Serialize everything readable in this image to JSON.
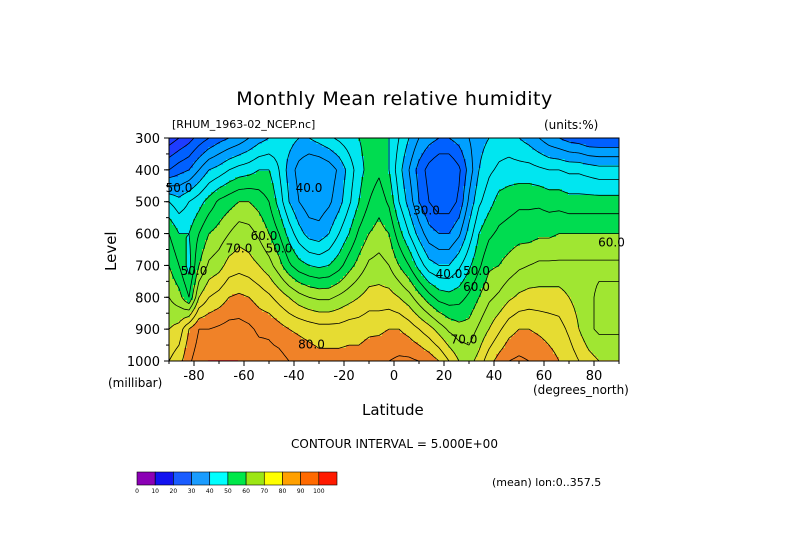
{
  "colors": {
    "c0_10": "#7f00bf",
    "c10_20": "#1e3cff",
    "c20_30": "#0060ff",
    "c30_40": "#00a0ff",
    "c40_50": "#00e6f0",
    "c50_60": "#00dc50",
    "c60_70": "#a0e632",
    "c70_80": "#e6dc32",
    "c80_90": "#f08228",
    "c90_100": "#fa3c3c"
  },
  "chart_data": {
    "type": "heatmap",
    "title": "Monthly Mean relative humidity",
    "file_label": "[RHUM_1963-02_NCEP.nc]",
    "units_label": "(units:%)",
    "ylabel": "Level",
    "yunits": "(millibar)",
    "xlabel": "Latitude",
    "xunits": "(degrees_north)",
    "contour_interval_text": "CONTOUR INTERVAL = 5.000E+00",
    "mean_text": "(mean) lon:0..357.5",
    "xlim": [
      -90,
      90
    ],
    "ylim": [
      1000,
      300
    ],
    "x_ticks": [
      -80,
      -60,
      -40,
      -20,
      0,
      20,
      40,
      60,
      80
    ],
    "y_ticks": [
      300,
      400,
      500,
      600,
      700,
      800,
      900,
      1000
    ],
    "colorbar_ticks": [
      0,
      10,
      20,
      30,
      40,
      50,
      60,
      70,
      80,
      90,
      100
    ],
    "colorbar_colors": [
      "#8b00b5",
      "#1212f0",
      "#1a5cff",
      "#1a9cff",
      "#00ffff",
      "#00e84a",
      "#9ce614",
      "#ffff00",
      "#ffa000",
      "#ff6a00",
      "#ff1a00"
    ],
    "contour_labels": [
      {
        "text": "40.0",
        "lat": -34,
        "level": 470
      },
      {
        "text": "30.0",
        "lat": 13,
        "level": 540
      },
      {
        "text": "40.0",
        "lat": 22,
        "level": 740
      },
      {
        "text": "50.0",
        "lat": -46,
        "level": 660
      },
      {
        "text": "50.0",
        "lat": 33,
        "level": 730
      },
      {
        "text": "60.0",
        "lat": -52,
        "level": 620
      },
      {
        "text": "60.0",
        "lat": 33,
        "level": 780
      },
      {
        "text": "70.0",
        "lat": -62,
        "level": 660
      },
      {
        "text": "70.0",
        "lat": 28,
        "level": 945
      },
      {
        "text": "80.0",
        "lat": -33,
        "level": 960
      },
      {
        "text": "50.0",
        "lat": -80,
        "level": 730
      },
      {
        "text": "50.0",
        "lat": -86,
        "level": 470
      },
      {
        "text": "60.0",
        "lat": 87,
        "level": 640
      }
    ],
    "rh_columns": {
      "lat": [
        -90,
        -86,
        -82,
        -78,
        -74,
        -70,
        -66,
        -62,
        -58,
        -54,
        -50,
        -46,
        -42,
        -38,
        -34,
        -30,
        -26,
        -22,
        -18,
        -14,
        -10,
        -6,
        -2,
        2,
        6,
        10,
        14,
        18,
        22,
        26,
        30,
        34,
        38,
        42,
        46,
        50,
        54,
        58,
        62,
        66,
        70,
        74,
        78,
        82,
        86,
        90
      ],
      "levels": [
        300,
        400,
        500,
        600,
        700,
        800,
        900,
        1000
      ],
      "values": [
        [
          12,
          25,
          45,
          55,
          60,
          65,
          70,
          75
        ],
        [
          15,
          28,
          42,
          50,
          55,
          62,
          72,
          78
        ],
        [
          18,
          30,
          45,
          50,
          48,
          55,
          80,
          84
        ],
        [
          22,
          35,
          48,
          55,
          60,
          70,
          85,
          88
        ],
        [
          25,
          40,
          52,
          60,
          66,
          75,
          85,
          90
        ],
        [
          28,
          42,
          56,
          62,
          68,
          77,
          86,
          90
        ],
        [
          30,
          45,
          58,
          65,
          72,
          80,
          87,
          90
        ],
        [
          32,
          47,
          60,
          68,
          73,
          81,
          87,
          90
        ],
        [
          35,
          48,
          60,
          67,
          72,
          80,
          86,
          89
        ],
        [
          38,
          50,
          58,
          64,
          70,
          78,
          84,
          88
        ],
        [
          40,
          50,
          55,
          60,
          67,
          76,
          84,
          87
        ],
        [
          42,
          45,
          48,
          55,
          62,
          73,
          82,
          87
        ],
        [
          42,
          38,
          40,
          48,
          56,
          70,
          80,
          85
        ],
        [
          40,
          33,
          35,
          42,
          52,
          67,
          79,
          84
        ],
        [
          40,
          30,
          32,
          38,
          50,
          65,
          78,
          83
        ],
        [
          42,
          30,
          32,
          37,
          49,
          64,
          77,
          82
        ],
        [
          44,
          32,
          34,
          40,
          50,
          64,
          77,
          82
        ],
        [
          46,
          36,
          38,
          45,
          53,
          66,
          77,
          82
        ],
        [
          48,
          42,
          44,
          50,
          58,
          68,
          78,
          82
        ],
        [
          50,
          48,
          50,
          56,
          62,
          70,
          78,
          82
        ],
        [
          52,
          52,
          55,
          60,
          66,
          72,
          79,
          83
        ],
        [
          52,
          54,
          58,
          62,
          67,
          72,
          79,
          84
        ],
        [
          50,
          50,
          54,
          60,
          65,
          72,
          80,
          85
        ],
        [
          45,
          42,
          45,
          52,
          60,
          70,
          80,
          86
        ],
        [
          40,
          35,
          38,
          45,
          55,
          67,
          78,
          86
        ],
        [
          35,
          28,
          30,
          38,
          48,
          62,
          75,
          85
        ],
        [
          32,
          23,
          25,
          32,
          42,
          57,
          72,
          83
        ],
        [
          30,
          20,
          22,
          30,
          40,
          53,
          68,
          80
        ],
        [
          30,
          20,
          22,
          30,
          40,
          52,
          64,
          75
        ],
        [
          32,
          24,
          26,
          34,
          44,
          53,
          62,
          70
        ],
        [
          35,
          32,
          36,
          42,
          49,
          56,
          62,
          68
        ],
        [
          38,
          40,
          44,
          50,
          54,
          60,
          66,
          72
        ],
        [
          40,
          44,
          48,
          54,
          59,
          64,
          70,
          78
        ],
        [
          42,
          46,
          52,
          56,
          60,
          66,
          74,
          82
        ],
        [
          42,
          47,
          53,
          57,
          62,
          69,
          78,
          85
        ],
        [
          40,
          47,
          54,
          58,
          64,
          71,
          80,
          86
        ],
        [
          38,
          47,
          54,
          58,
          65,
          72,
          80,
          85
        ],
        [
          35,
          46,
          54,
          59,
          66,
          72,
          79,
          84
        ],
        [
          32,
          45,
          53,
          59,
          66,
          72,
          78,
          82
        ],
        [
          30,
          45,
          53,
          60,
          66,
          72,
          77,
          80
        ],
        [
          28,
          44,
          52,
          60,
          66,
          70,
          74,
          78
        ],
        [
          27,
          44,
          52,
          60,
          66,
          68,
          70,
          75
        ],
        [
          25,
          43,
          52,
          60,
          66,
          66,
          66,
          72
        ],
        [
          25,
          42,
          52,
          60,
          66,
          64,
          64,
          70
        ],
        [
          25,
          42,
          52,
          60,
          66,
          64,
          64,
          70
        ],
        [
          25,
          42,
          52,
          60,
          66,
          64,
          64,
          70
        ]
      ]
    }
  }
}
